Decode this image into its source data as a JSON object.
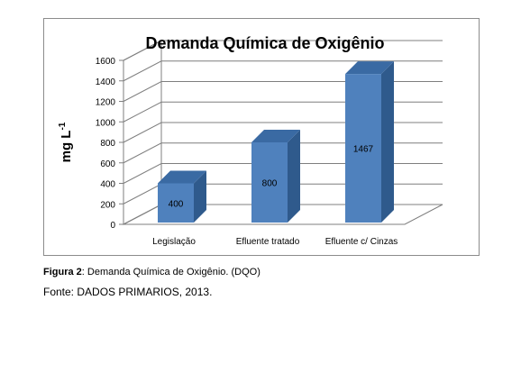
{
  "chart_data": {
    "type": "bar",
    "title": "Demanda Química de Oxigênio",
    "ylabel": "mg L",
    "ylabel_superscript": "-1",
    "categories": [
      "Legislação",
      "Efluente tratado",
      "Efluente c/ Cinzas"
    ],
    "values": [
      400,
      800,
      1467
    ],
    "data_labels": [
      "400",
      "800",
      "1467"
    ],
    "ylim": [
      0,
      1600
    ],
    "yticks": [
      0,
      200,
      400,
      600,
      800,
      1000,
      1200,
      1400,
      1600
    ],
    "ytick_labels": [
      "0",
      "200",
      "400",
      "600",
      "800",
      "1000",
      "1200",
      "1400",
      "1600"
    ],
    "grid": true,
    "three_d": true,
    "bar_color": "#4f81bd",
    "bar_side_color": "#2f5a8c",
    "bar_top_color": "#3a6aa3"
  },
  "caption": {
    "label": "Figura 2",
    "text": ": Demanda Química de Oxigênio. (DQO)"
  },
  "source": "Fonte: DADOS PRIMARIOS,  2013."
}
